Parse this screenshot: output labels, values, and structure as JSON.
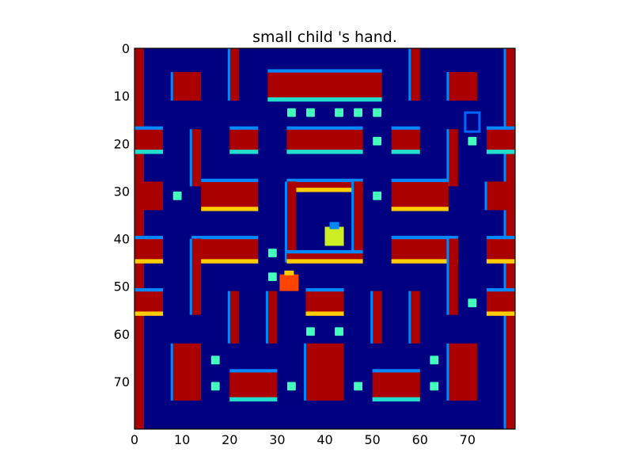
{
  "title": "small child 's hand.",
  "palette": {
    "background": "#000080",
    "wall": "#aa0000",
    "wall_top_cyan": "#22ddcc",
    "wall_top_yellow": "#ffcc00",
    "wall_edge_blue": "#0088ff",
    "pellet": "#44ffbb",
    "player": "#ff4400",
    "ghost": "#0066ff",
    "cage_item": "#ccee22"
  },
  "chart_data": {
    "type": "heatmap",
    "title": "small child 's hand.",
    "xlabel": "",
    "ylabel": "",
    "xlim": [
      0,
      80
    ],
    "ylim": [
      80,
      0
    ],
    "x_ticks": [
      0,
      10,
      20,
      30,
      40,
      50,
      60,
      70
    ],
    "y_ticks": [
      0,
      10,
      20,
      30,
      40,
      50,
      60,
      70
    ],
    "x_tick_labels": [
      "0",
      "10",
      "20",
      "30",
      "40",
      "50",
      "60",
      "70"
    ],
    "y_tick_labels": [
      "0",
      "10",
      "20",
      "30",
      "40",
      "50",
      "60",
      "70"
    ],
    "colormap": "jet",
    "cells": [
      {
        "kind": "wall",
        "x": 0,
        "y": 0,
        "w": 2,
        "h": 80
      },
      {
        "kind": "wall",
        "x": 78,
        "y": 0,
        "w": 2,
        "h": 80
      },
      {
        "kind": "wall",
        "x": 8,
        "y": 5,
        "w": 6,
        "h": 6
      },
      {
        "kind": "wall",
        "x": 20,
        "y": 0,
        "w": 2,
        "h": 11
      },
      {
        "kind": "wall",
        "x": 28,
        "y": 5,
        "w": 24,
        "h": 6
      },
      {
        "kind": "wall",
        "x": 58,
        "y": 0,
        "w": 2,
        "h": 11
      },
      {
        "kind": "wall",
        "x": 66,
        "y": 5,
        "w": 6,
        "h": 6
      },
      {
        "kind": "wall",
        "x": 0,
        "y": 17,
        "w": 6,
        "h": 5
      },
      {
        "kind": "wall",
        "x": 12,
        "y": 17,
        "w": 2,
        "h": 12
      },
      {
        "kind": "wall",
        "x": 20,
        "y": 17,
        "w": 6,
        "h": 5
      },
      {
        "kind": "wall",
        "x": 32,
        "y": 17,
        "w": 16,
        "h": 5
      },
      {
        "kind": "wall",
        "x": 54,
        "y": 17,
        "w": 6,
        "h": 5
      },
      {
        "kind": "wall",
        "x": 66,
        "y": 17,
        "w": 2,
        "h": 12
      },
      {
        "kind": "wall",
        "x": 74,
        "y": 17,
        "w": 6,
        "h": 5
      },
      {
        "kind": "wall",
        "x": 0,
        "y": 28,
        "w": 6,
        "h": 6
      },
      {
        "kind": "wall",
        "x": 14,
        "y": 28,
        "w": 12,
        "h": 6
      },
      {
        "kind": "wall",
        "x": 32,
        "y": 28,
        "w": 16,
        "h": 2
      },
      {
        "kind": "wall",
        "x": 54,
        "y": 28,
        "w": 12,
        "h": 6
      },
      {
        "kind": "wall",
        "x": 74,
        "y": 28,
        "w": 6,
        "h": 6
      },
      {
        "kind": "wall",
        "x": 32,
        "y": 28,
        "w": 2,
        "h": 17
      },
      {
        "kind": "wall",
        "x": 46,
        "y": 28,
        "w": 2,
        "h": 17
      },
      {
        "kind": "wall",
        "x": 32,
        "y": 43,
        "w": 16,
        "h": 2
      },
      {
        "kind": "wall",
        "x": 0,
        "y": 40,
        "w": 6,
        "h": 5
      },
      {
        "kind": "wall",
        "x": 12,
        "y": 40,
        "w": 14,
        "h": 5
      },
      {
        "kind": "wall",
        "x": 12,
        "y": 40,
        "w": 2,
        "h": 16
      },
      {
        "kind": "wall",
        "x": 54,
        "y": 40,
        "w": 14,
        "h": 5
      },
      {
        "kind": "wall",
        "x": 66,
        "y": 40,
        "w": 2,
        "h": 16
      },
      {
        "kind": "wall",
        "x": 74,
        "y": 40,
        "w": 6,
        "h": 5
      },
      {
        "kind": "wall",
        "x": 0,
        "y": 51,
        "w": 6,
        "h": 5
      },
      {
        "kind": "wall",
        "x": 20,
        "y": 51,
        "w": 2,
        "h": 11
      },
      {
        "kind": "wall",
        "x": 28,
        "y": 51,
        "w": 2,
        "h": 11
      },
      {
        "kind": "wall",
        "x": 36,
        "y": 51,
        "w": 8,
        "h": 5
      },
      {
        "kind": "wall",
        "x": 50,
        "y": 51,
        "w": 2,
        "h": 11
      },
      {
        "kind": "wall",
        "x": 58,
        "y": 51,
        "w": 2,
        "h": 11
      },
      {
        "kind": "wall",
        "x": 74,
        "y": 51,
        "w": 6,
        "h": 5
      },
      {
        "kind": "wall",
        "x": 8,
        "y": 62,
        "w": 6,
        "h": 12
      },
      {
        "kind": "wall",
        "x": 20,
        "y": 68,
        "w": 10,
        "h": 6
      },
      {
        "kind": "wall",
        "x": 36,
        "y": 62,
        "w": 8,
        "h": 12
      },
      {
        "kind": "wall",
        "x": 50,
        "y": 68,
        "w": 10,
        "h": 6
      },
      {
        "kind": "wall",
        "x": 66,
        "y": 62,
        "w": 6,
        "h": 12
      }
    ],
    "pellets": [
      {
        "x": 33,
        "y": 13.5
      },
      {
        "x": 37,
        "y": 13.5
      },
      {
        "x": 43,
        "y": 13.5
      },
      {
        "x": 47,
        "y": 13.5
      },
      {
        "x": 51,
        "y": 13.5
      },
      {
        "x": 51,
        "y": 19.5
      },
      {
        "x": 71,
        "y": 19.5
      },
      {
        "x": 9,
        "y": 31
      },
      {
        "x": 51,
        "y": 31
      },
      {
        "x": 29,
        "y": 43
      },
      {
        "x": 29,
        "y": 48
      },
      {
        "x": 71,
        "y": 53.5
      },
      {
        "x": 37,
        "y": 59.5
      },
      {
        "x": 43,
        "y": 59.5
      },
      {
        "x": 17,
        "y": 65.5
      },
      {
        "x": 63,
        "y": 65.5
      },
      {
        "x": 17,
        "y": 71
      },
      {
        "x": 33,
        "y": 71
      },
      {
        "x": 47,
        "y": 71
      },
      {
        "x": 63,
        "y": 71
      }
    ],
    "player": {
      "x": 32.5,
      "y": 49.5
    },
    "ghost": {
      "x": 71,
      "y": 16
    },
    "cage_item": {
      "x": 42,
      "y": 39
    }
  }
}
